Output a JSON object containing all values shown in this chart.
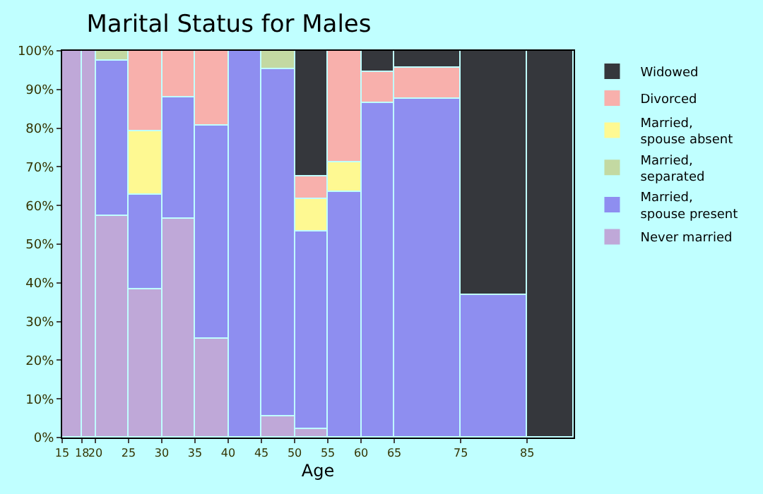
{
  "chart_data": {
    "type": "bar",
    "stacked": true,
    "title": "Marital Status for Males",
    "xlabel": "Age",
    "x": [
      16.5,
      19,
      22.5,
      27.5,
      32.5,
      37.5,
      42.5,
      47.5,
      52.5,
      57.5,
      62.5,
      70,
      80,
      88.5
    ],
    "xlim": [
      15,
      92
    ],
    "xticks": [
      15,
      18,
      20,
      25,
      30,
      35,
      40,
      45,
      50,
      55,
      60,
      65,
      75,
      85
    ],
    "ylim": [
      0,
      100
    ],
    "yticks": [
      {
        "value": 0,
        "label": "0%"
      },
      {
        "value": 10,
        "label": "10%"
      },
      {
        "value": 20,
        "label": "20%"
      },
      {
        "value": 30,
        "label": "30%"
      },
      {
        "value": 40,
        "label": "40%"
      },
      {
        "value": 50,
        "label": "50%"
      },
      {
        "value": 60,
        "label": "60%"
      },
      {
        "value": 70,
        "label": "70%"
      },
      {
        "value": 80,
        "label": "80%"
      },
      {
        "value": 90,
        "label": "90%"
      },
      {
        "value": 100,
        "label": "100%"
      }
    ],
    "legend": "right",
    "series": [
      {
        "name": "Never married",
        "color": "#bfa8d8",
        "values": [
          100,
          100,
          57.2,
          38.5,
          56.5,
          25.7,
          null,
          5.5,
          2.2,
          null,
          null,
          null,
          null,
          null
        ]
      },
      {
        "name": "Married,\nspouse present",
        "color": "#8e8ef0",
        "values": [
          null,
          null,
          40.4,
          24.2,
          31.5,
          55.0,
          100,
          89.6,
          51.0,
          63.4,
          86.6,
          87.7,
          37.0,
          null
        ]
      },
      {
        "name": "Married,\nseparated",
        "color": "#c3d9a2",
        "values": [
          null,
          null,
          2.4,
          null,
          null,
          null,
          null,
          4.9,
          null,
          null,
          null,
          null,
          null,
          null
        ]
      },
      {
        "name": "Married,\nspouse absent",
        "color": "#fef992",
        "values": [
          null,
          null,
          null,
          16.5,
          null,
          null,
          null,
          null,
          8.4,
          7.7,
          null,
          null,
          null,
          null
        ]
      },
      {
        "name": "Divorced",
        "color": "#f8b0ac",
        "values": [
          null,
          null,
          null,
          20.8,
          12.0,
          19.3,
          null,
          null,
          5.9,
          28.9,
          8.0,
          8.0,
          null,
          null
        ]
      },
      {
        "name": "Widowed",
        "color": "#35373c",
        "values": [
          null,
          null,
          null,
          null,
          null,
          null,
          null,
          null,
          32.5,
          null,
          5.4,
          4.3,
          63.0,
          100
        ]
      }
    ]
  }
}
